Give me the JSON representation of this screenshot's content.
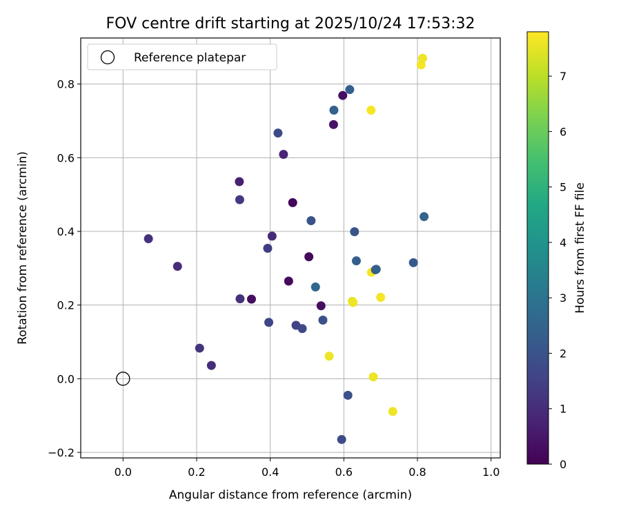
{
  "chart_data": {
    "type": "scatter",
    "title": "FOV centre drift starting at 2025/10/24 17:53:32",
    "xlabel": "Angular distance from reference (arcmin)",
    "ylabel": "Rotation from reference (arcmin)",
    "xlim": [
      -0.115,
      1.025
    ],
    "ylim": [
      -0.215,
      0.925
    ],
    "xticks": [
      0.0,
      0.2,
      0.4,
      0.6,
      0.8,
      1.0
    ],
    "xtick_labels": [
      "0.0",
      "0.2",
      "0.4",
      "0.6",
      "0.8",
      "1.0"
    ],
    "yticks": [
      -0.2,
      0.0,
      0.2,
      0.4,
      0.6,
      0.8
    ],
    "ytick_labels": [
      "−0.2",
      "0.0",
      "0.2",
      "0.4",
      "0.6",
      "0.8"
    ],
    "grid": true,
    "legend": {
      "position": "top-left",
      "entries": [
        {
          "label": "Reference platepar",
          "marker": "open-circle"
        }
      ]
    },
    "reference_point": {
      "x": 0.0,
      "y": 0.0
    },
    "colorbar": {
      "label": "Hours from first FF file",
      "range": [
        0,
        7.8
      ],
      "ticks": [
        0,
        1,
        2,
        3,
        4,
        5,
        6,
        7
      ],
      "tick_labels": [
        "0",
        "1",
        "2",
        "3",
        "4",
        "5",
        "6",
        "7"
      ],
      "colormap": "viridis"
    },
    "points": [
      {
        "x": 0.069,
        "y": 0.38,
        "c": 1.1
      },
      {
        "x": 0.148,
        "y": 0.305,
        "c": 1.0
      },
      {
        "x": 0.208,
        "y": 0.083,
        "c": 1.2
      },
      {
        "x": 0.24,
        "y": 0.036,
        "c": 1.0
      },
      {
        "x": 0.316,
        "y": 0.535,
        "c": 0.7
      },
      {
        "x": 0.317,
        "y": 0.486,
        "c": 1.3
      },
      {
        "x": 0.318,
        "y": 0.217,
        "c": 1.1
      },
      {
        "x": 0.349,
        "y": 0.216,
        "c": 0.3
      },
      {
        "x": 0.393,
        "y": 0.354,
        "c": 1.4
      },
      {
        "x": 0.396,
        "y": 0.153,
        "c": 1.6
      },
      {
        "x": 0.405,
        "y": 0.387,
        "c": 0.9
      },
      {
        "x": 0.421,
        "y": 0.667,
        "c": 1.8
      },
      {
        "x": 0.436,
        "y": 0.609,
        "c": 0.8
      },
      {
        "x": 0.45,
        "y": 0.265,
        "c": 0.2
      },
      {
        "x": 0.461,
        "y": 0.478,
        "c": 0.1
      },
      {
        "x": 0.47,
        "y": 0.145,
        "c": 1.5
      },
      {
        "x": 0.487,
        "y": 0.136,
        "c": 1.7
      },
      {
        "x": 0.505,
        "y": 0.331,
        "c": 0.2
      },
      {
        "x": 0.511,
        "y": 0.429,
        "c": 2.0
      },
      {
        "x": 0.523,
        "y": 0.249,
        "c": 2.6
      },
      {
        "x": 0.538,
        "y": 0.198,
        "c": 0.3
      },
      {
        "x": 0.543,
        "y": 0.159,
        "c": 1.9
      },
      {
        "x": 0.56,
        "y": 0.061,
        "c": 7.6
      },
      {
        "x": 0.572,
        "y": 0.69,
        "c": 0.4
      },
      {
        "x": 0.573,
        "y": 0.729,
        "c": 2.4
      },
      {
        "x": 0.594,
        "y": -0.165,
        "c": 1.8
      },
      {
        "x": 0.597,
        "y": 0.769,
        "c": 0.3
      },
      {
        "x": 0.611,
        "y": -0.045,
        "c": 1.9
      },
      {
        "x": 0.616,
        "y": 0.785,
        "c": 2.3
      },
      {
        "x": 0.623,
        "y": 0.21,
        "c": 7.4
      },
      {
        "x": 0.625,
        "y": 0.207,
        "c": 7.6
      },
      {
        "x": 0.629,
        "y": 0.399,
        "c": 2.0
      },
      {
        "x": 0.634,
        "y": 0.32,
        "c": 2.3
      },
      {
        "x": 0.674,
        "y": 0.729,
        "c": 7.7
      },
      {
        "x": 0.675,
        "y": 0.289,
        "c": 7.7
      },
      {
        "x": 0.68,
        "y": 0.005,
        "c": 7.6
      },
      {
        "x": 0.686,
        "y": 0.296,
        "c": 2.0
      },
      {
        "x": 0.688,
        "y": 0.297,
        "c": 2.4
      },
      {
        "x": 0.7,
        "y": 0.221,
        "c": 7.7
      },
      {
        "x": 0.733,
        "y": -0.089,
        "c": 7.6
      },
      {
        "x": 0.789,
        "y": 0.315,
        "c": 2.2
      },
      {
        "x": 0.81,
        "y": 0.852,
        "c": 7.7
      },
      {
        "x": 0.814,
        "y": 0.87,
        "c": 7.6
      },
      {
        "x": 0.818,
        "y": 0.44,
        "c": 2.5
      }
    ]
  }
}
